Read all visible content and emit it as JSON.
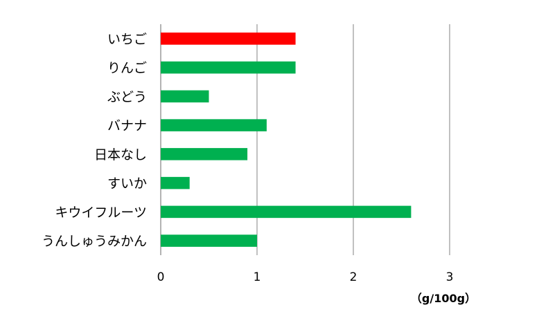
{
  "chart_data": {
    "type": "bar",
    "orientation": "horizontal",
    "categories": [
      "いちご",
      "りんご",
      "ぶどう",
      "バナナ",
      "日本なし",
      "すいか",
      "キウイフルーツ",
      "うんしゅうみかん"
    ],
    "values": [
      1.4,
      1.4,
      0.5,
      1.1,
      0.9,
      0.3,
      2.6,
      1.0
    ],
    "colors": [
      "#ff0000",
      "#00b050",
      "#00b050",
      "#00b050",
      "#00b050",
      "#00b050",
      "#00b050",
      "#00b050"
    ],
    "xlim": [
      0,
      3
    ],
    "xticks": [
      "0",
      "1",
      "2",
      "3"
    ],
    "unit_label": "（g/100g）",
    "grid": "vertical",
    "legend": "none"
  }
}
